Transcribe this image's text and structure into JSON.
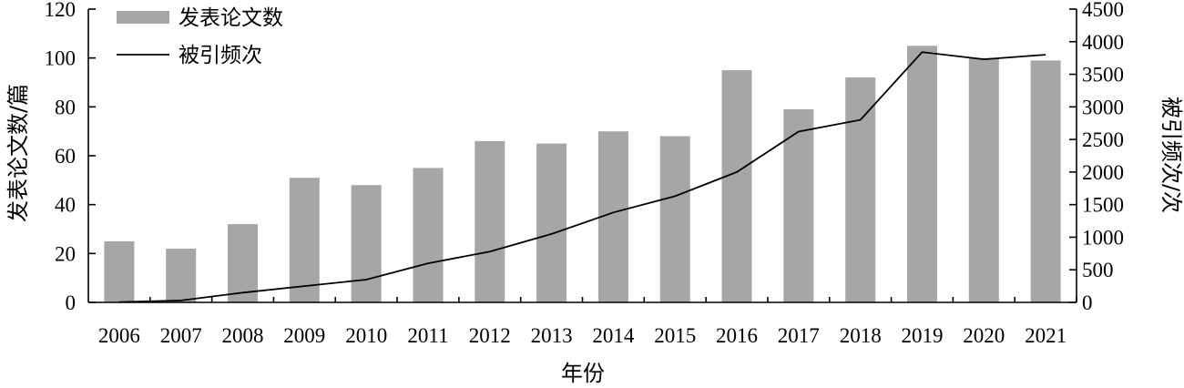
{
  "chart_data": {
    "type": "bar",
    "categories": [
      "2006",
      "2007",
      "2008",
      "2009",
      "2010",
      "2011",
      "2012",
      "2013",
      "2014",
      "2015",
      "2016",
      "2017",
      "2018",
      "2019",
      "2020",
      "2021"
    ],
    "xlabel": "年份",
    "ylabel_left": "发表论文数/篇",
    "ylabel_right": "被引频次/次",
    "ylim_left": [
      0,
      120
    ],
    "yticks_left": [
      0,
      20,
      40,
      60,
      80,
      100,
      120
    ],
    "ylim_right": [
      0,
      4500
    ],
    "yticks_right": [
      0,
      500,
      1000,
      1500,
      2000,
      2500,
      3000,
      3500,
      4000,
      4500
    ],
    "legend_position": "top-left",
    "grid": false,
    "series": [
      {
        "name": "发表论文数",
        "type": "bar",
        "axis": "left",
        "color": "#a6a6a6",
        "values": [
          25,
          22,
          32,
          51,
          48,
          55,
          66,
          65,
          70,
          68,
          95,
          79,
          92,
          105,
          100,
          99
        ]
      },
      {
        "name": "被引频次",
        "type": "line",
        "axis": "right",
        "color": "#000000",
        "values": [
          5,
          30,
          150,
          250,
          350,
          600,
          780,
          1050,
          1380,
          1630,
          2000,
          2620,
          2800,
          3840,
          3730,
          3800
        ]
      }
    ]
  }
}
